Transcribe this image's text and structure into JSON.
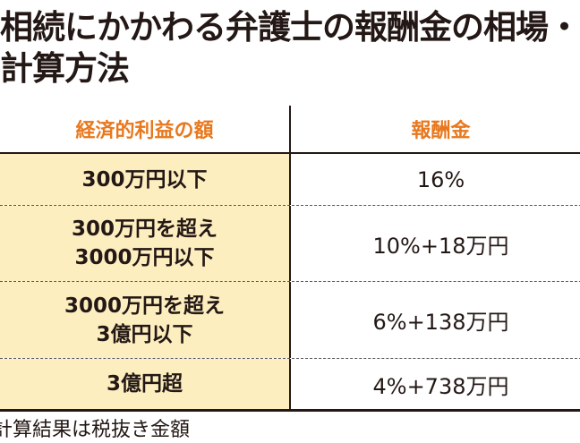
{
  "title": {
    "line1": "相続にかかわる弁護士の報酬金の相場・",
    "line2": "計算方法"
  },
  "table": {
    "headers": [
      "経済的利益の額",
      "報酬金"
    ],
    "rows": [
      {
        "amount": "300万円以下",
        "fee": "16%"
      },
      {
        "amount": "300万円を超え\n3000万円以下",
        "fee": "10%+18万円"
      },
      {
        "amount": "3000万円を超え\n3億円以下",
        "fee": "6%+138万円"
      },
      {
        "amount": "3億円超",
        "fee": "4%+738万円"
      }
    ]
  },
  "note": "計算結果は税抜き金額",
  "colors": {
    "header_text": "#e8781e",
    "left_column_bg": "#fdeec0"
  }
}
